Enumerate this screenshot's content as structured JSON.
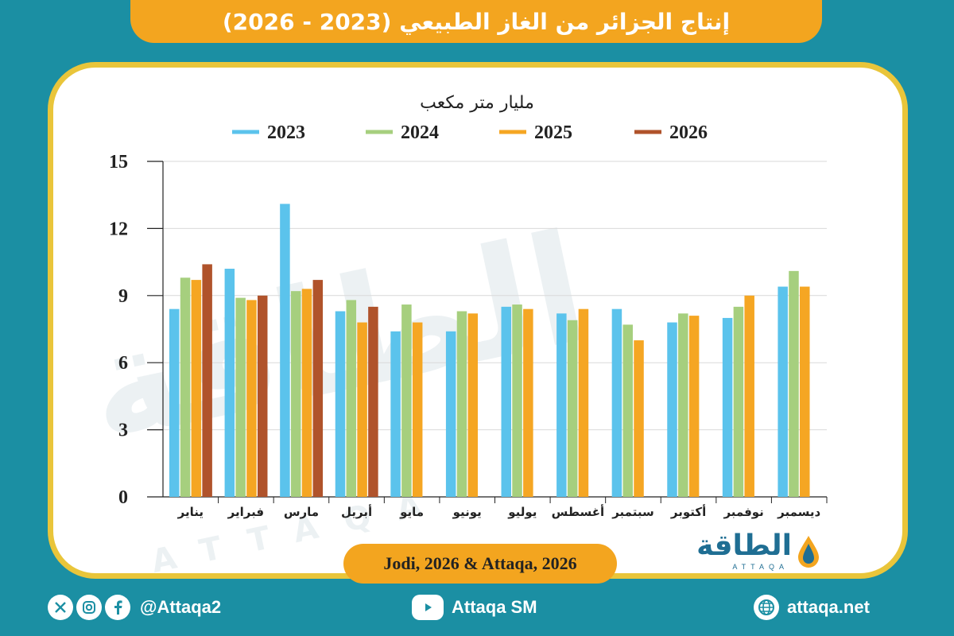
{
  "header": {
    "title": "إنتاج الجزائر من الغاز الطبيعي (2023 - 2026)"
  },
  "chart_data": {
    "type": "bar",
    "unit_label": "مليار متر مكعب",
    "categories": [
      "يناير",
      "فبراير",
      "مارس",
      "أبريل",
      "مايو",
      "يونيو",
      "يوليو",
      "أغسطس",
      "سبتمبر",
      "أكتوبر",
      "نوفمبر",
      "ديسمبر"
    ],
    "series": [
      {
        "name": "2023",
        "color": "#5bc3ec",
        "values": [
          8.4,
          10.2,
          13.1,
          8.3,
          7.4,
          7.4,
          8.5,
          8.2,
          8.4,
          7.8,
          8.0,
          9.4
        ]
      },
      {
        "name": "2024",
        "color": "#a6cf7e",
        "values": [
          9.8,
          8.9,
          9.2,
          8.8,
          8.6,
          8.3,
          8.6,
          7.9,
          7.7,
          8.2,
          8.5,
          10.1
        ]
      },
      {
        "name": "2025",
        "color": "#f5a623",
        "values": [
          9.7,
          8.8,
          9.3,
          7.8,
          7.8,
          8.2,
          8.4,
          8.4,
          7.0,
          8.1,
          9.0,
          9.4
        ]
      },
      {
        "name": "2026",
        "color": "#b0532b",
        "values": [
          10.4,
          9.0,
          9.7,
          8.5,
          null,
          null,
          null,
          null,
          null,
          null,
          null,
          null
        ]
      }
    ],
    "y_ticks": [
      "0",
      "3",
      "6",
      "9",
      "12",
      "15"
    ],
    "ylim": [
      0,
      15
    ],
    "grid": true,
    "legend_position": "top"
  },
  "source": {
    "text": "Jodi, 2026 & Attaqa, 2026"
  },
  "logo": {
    "arabic": "الطاقة",
    "latin": "ATTAQA"
  },
  "watermark": {
    "text": "الطاقة",
    "latin": "ATTAQA"
  },
  "footer": {
    "social_handle": "@Attaqa2",
    "youtube": "Attaqa SM",
    "website": "attaqa.net",
    "icons": [
      "x-icon",
      "instagram-icon",
      "facebook-icon",
      "youtube-icon",
      "globe-icon"
    ]
  }
}
